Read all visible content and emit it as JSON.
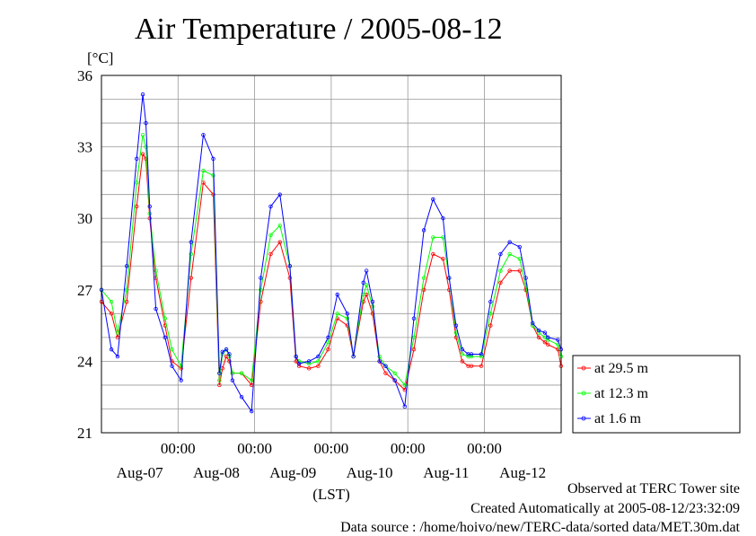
{
  "chart_data": {
    "type": "line",
    "title": "Air Temperature / 2005-08-12",
    "ylabel": "[°C]",
    "xlabel": "(LST)",
    "ylim": [
      21,
      36
    ],
    "yticks": [
      "36",
      "33",
      "30",
      "27",
      "24",
      "21"
    ],
    "ytick_values": [
      36,
      33,
      30,
      27,
      24,
      21
    ],
    "xlim_days": [
      0,
      6
    ],
    "xtick_times": [
      "00:00",
      "00:00",
      "00:00",
      "00:00",
      "00:00"
    ],
    "xtick_dates": [
      "Aug-07",
      "Aug-08",
      "Aug-09",
      "Aug-10",
      "Aug-11",
      "Aug-12"
    ],
    "grid": true,
    "legend_position": "right",
    "series": [
      {
        "name": "at 29.5 m",
        "color": "#ff0000",
        "x": [
          0,
          0.13,
          0.21,
          0.33,
          0.46,
          0.54,
          0.58,
          0.63,
          0.71,
          0.83,
          0.92,
          1.04,
          1.17,
          1.33,
          1.46,
          1.54,
          1.58,
          1.63,
          1.67,
          1.71,
          1.83,
          1.96,
          2.08,
          2.21,
          2.33,
          2.46,
          2.54,
          2.58,
          2.71,
          2.83,
          2.96,
          3.08,
          3.21,
          3.29,
          3.42,
          3.46,
          3.54,
          3.63,
          3.71,
          3.83,
          3.96,
          4.08,
          4.21,
          4.33,
          4.46,
          4.54,
          4.63,
          4.71,
          4.79,
          4.83,
          4.96,
          5.08,
          5.21,
          5.33,
          5.46,
          5.54,
          5.63,
          5.71,
          5.79,
          5.83,
          5.96,
          6.0
        ],
        "y": [
          26.5,
          26.0,
          25.0,
          26.5,
          30.5,
          32.7,
          32.5,
          30.0,
          27.5,
          25.5,
          24.0,
          23.7,
          27.5,
          31.5,
          31.0,
          23.0,
          23.7,
          24.2,
          24.0,
          23.5,
          23.5,
          23.0,
          26.5,
          28.5,
          29.0,
          27.5,
          24.0,
          23.8,
          23.7,
          23.8,
          24.5,
          25.8,
          25.5,
          24.2,
          26.5,
          26.8,
          26.0,
          24.0,
          23.5,
          23.2,
          22.8,
          24.5,
          27.0,
          28.5,
          28.3,
          27.0,
          25.0,
          24.0,
          23.8,
          23.8,
          23.8,
          25.5,
          27.3,
          27.8,
          27.8,
          27.0,
          25.5,
          25.0,
          24.8,
          24.7,
          24.5,
          23.8
        ]
      },
      {
        "name": "at 12.3 m",
        "color": "#00ff00",
        "x": [
          0,
          0.13,
          0.21,
          0.33,
          0.46,
          0.54,
          0.58,
          0.63,
          0.71,
          0.83,
          0.92,
          1.04,
          1.17,
          1.33,
          1.46,
          1.54,
          1.58,
          1.63,
          1.67,
          1.71,
          1.83,
          1.96,
          2.08,
          2.21,
          2.33,
          2.46,
          2.54,
          2.58,
          2.71,
          2.83,
          2.96,
          3.08,
          3.21,
          3.29,
          3.42,
          3.46,
          3.54,
          3.63,
          3.71,
          3.83,
          3.96,
          4.08,
          4.21,
          4.33,
          4.46,
          4.54,
          4.63,
          4.71,
          4.79,
          4.83,
          4.96,
          5.08,
          5.21,
          5.33,
          5.46,
          5.54,
          5.63,
          5.71,
          5.79,
          5.83,
          5.96,
          6.0
        ],
        "y": [
          27.0,
          26.5,
          25.2,
          27.0,
          31.5,
          33.5,
          33.0,
          30.2,
          27.8,
          25.8,
          24.5,
          23.8,
          28.5,
          32.0,
          31.8,
          23.2,
          24.3,
          24.5,
          24.2,
          23.5,
          23.5,
          23.2,
          27.0,
          29.3,
          29.7,
          28.0,
          24.2,
          24.0,
          23.9,
          24.0,
          24.8,
          26.0,
          25.8,
          24.2,
          26.8,
          27.2,
          26.3,
          24.2,
          23.8,
          23.5,
          23.0,
          25.0,
          27.5,
          29.2,
          29.2,
          27.5,
          25.2,
          24.3,
          24.2,
          24.2,
          24.2,
          26.0,
          27.8,
          28.5,
          28.3,
          27.2,
          25.5,
          25.2,
          25.0,
          24.9,
          24.7,
          24.2
        ]
      },
      {
        "name": "at 1.6 m",
        "color": "#0000ff",
        "x": [
          0,
          0.13,
          0.21,
          0.33,
          0.46,
          0.54,
          0.58,
          0.63,
          0.71,
          0.83,
          0.92,
          1.04,
          1.17,
          1.33,
          1.46,
          1.54,
          1.58,
          1.63,
          1.67,
          1.71,
          1.83,
          1.96,
          2.08,
          2.21,
          2.33,
          2.46,
          2.54,
          2.58,
          2.71,
          2.83,
          2.96,
          3.08,
          3.21,
          3.29,
          3.42,
          3.46,
          3.54,
          3.63,
          3.71,
          3.83,
          3.96,
          4.08,
          4.21,
          4.33,
          4.46,
          4.54,
          4.63,
          4.71,
          4.79,
          4.83,
          4.96,
          5.08,
          5.21,
          5.33,
          5.46,
          5.54,
          5.63,
          5.71,
          5.79,
          5.83,
          5.96,
          6.0
        ],
        "y": [
          27.0,
          24.5,
          24.2,
          28.0,
          32.5,
          35.2,
          34.0,
          30.5,
          26.2,
          25.0,
          23.8,
          23.2,
          29.0,
          33.5,
          32.5,
          23.5,
          24.4,
          24.5,
          24.3,
          23.2,
          22.5,
          21.9,
          27.5,
          30.5,
          31.0,
          28.0,
          24.2,
          23.9,
          24.0,
          24.2,
          25.0,
          26.8,
          26.0,
          24.2,
          27.3,
          27.8,
          26.5,
          24.0,
          23.8,
          23.2,
          22.1,
          25.8,
          29.5,
          30.8,
          30.0,
          27.5,
          25.5,
          24.5,
          24.3,
          24.3,
          24.3,
          26.5,
          28.5,
          29.0,
          28.8,
          27.5,
          25.6,
          25.3,
          25.2,
          25.0,
          24.9,
          24.5
        ]
      }
    ]
  },
  "footer": {
    "line1": "Observed at TERC Tower site",
    "line2": "Created Automatically at 2005-08-12/23:32:09",
    "line3": "Data source : /home/hoivo/new/TERC-data/sorted  data/MET.30m.dat"
  }
}
